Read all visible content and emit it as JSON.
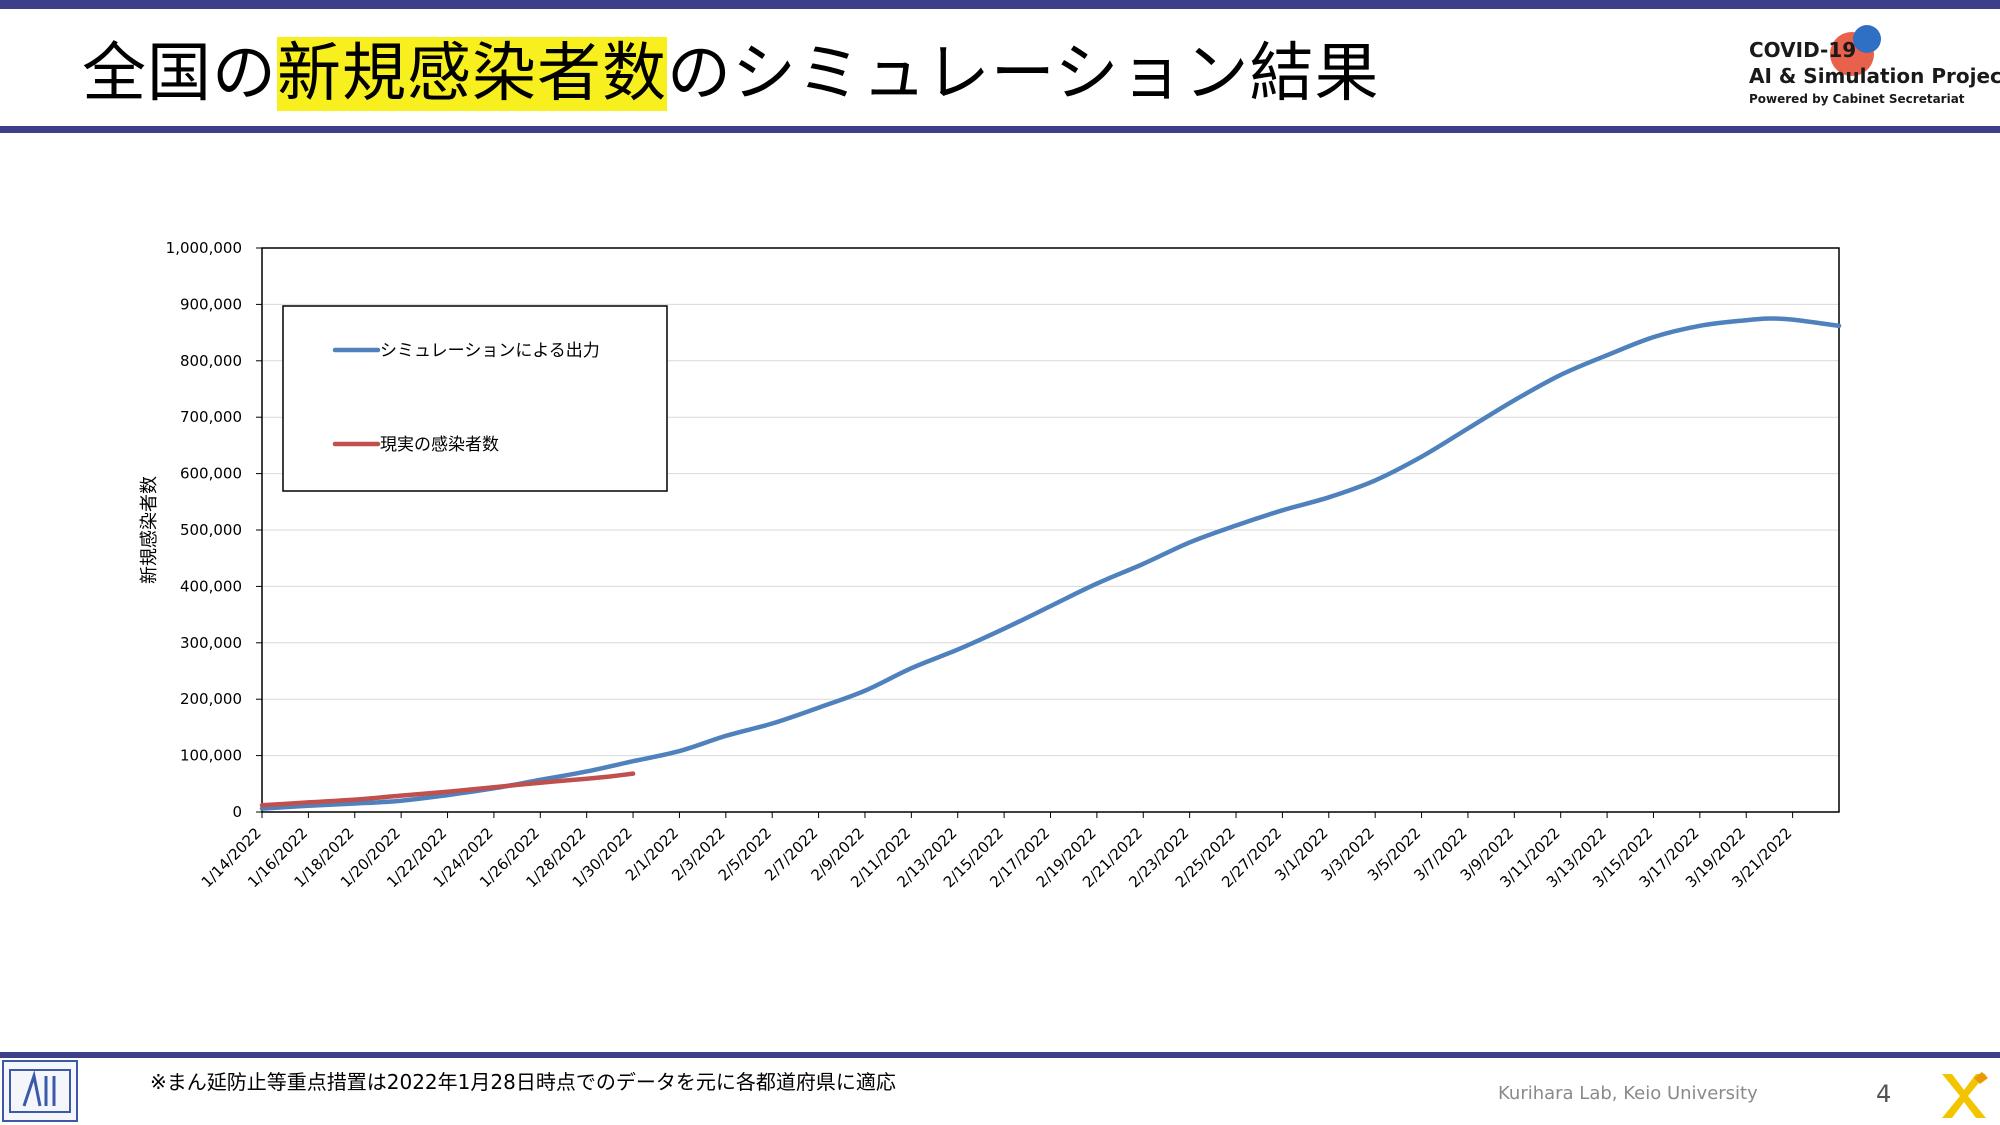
{
  "slide": {
    "title_pre": "全国の",
    "title_highlight": "新規感染者数",
    "title_post": "のシミュレーション結果",
    "logo": {
      "line1": "COVID-19",
      "line2": "AI & Simulation Project",
      "line3": "Powered by Cabinet Secretariat"
    },
    "footnote": "※まん延防止等重点措置は2022年1月28日時点でのデータを元に各都道府県に適応",
    "credit": "Kurihara Lab, Keio University",
    "page_number": "4",
    "colors": {
      "bar": "#3d3f8a",
      "highlight": "#f7f01e",
      "accent_x": "#f2c500"
    }
  },
  "chart_data": {
    "type": "line",
    "title": "",
    "xlabel": "",
    "ylabel": "新規感染者数",
    "x_start": "1/14/2022",
    "x_end": "3/23/2022",
    "x_tick_labels": [
      "1/14/2022",
      "1/16/2022",
      "1/18/2022",
      "1/20/2022",
      "1/22/2022",
      "1/24/2022",
      "1/26/2022",
      "1/28/2022",
      "1/30/2022",
      "2/1/2022",
      "2/3/2022",
      "2/5/2022",
      "2/7/2022",
      "2/9/2022",
      "2/11/2022",
      "2/13/2022",
      "2/15/2022",
      "2/17/2022",
      "2/19/2022",
      "2/21/2022",
      "2/23/2022",
      "2/25/2022",
      "2/27/2022",
      "3/1/2022",
      "3/3/2022",
      "3/5/2022",
      "3/7/2022",
      "3/9/2022",
      "3/11/2022",
      "3/13/2022",
      "3/15/2022",
      "3/17/2022",
      "3/19/2022",
      "3/21/2022"
    ],
    "ylim": [
      0,
      1000000
    ],
    "y_ticks": [
      0,
      100000,
      200000,
      300000,
      400000,
      500000,
      600000,
      700000,
      800000,
      900000,
      1000000
    ],
    "y_tick_labels": [
      "0",
      "100,000",
      "200,000",
      "300,000",
      "400,000",
      "500,000",
      "600,000",
      "700,000",
      "800,000",
      "900,000",
      "1,000,000"
    ],
    "grid": true,
    "legend_position": "top-left",
    "series": [
      {
        "name": "シミュレーションによる出力",
        "color": "#4f81bd",
        "points": [
          [
            "1/14/2022",
            6000
          ],
          [
            "1/16/2022",
            11000
          ],
          [
            "1/18/2022",
            15000
          ],
          [
            "1/20/2022",
            20000
          ],
          [
            "1/22/2022",
            30000
          ],
          [
            "1/24/2022",
            42000
          ],
          [
            "1/26/2022",
            57000
          ],
          [
            "1/28/2022",
            72000
          ],
          [
            "1/30/2022",
            90000
          ],
          [
            "2/1/2022",
            108000
          ],
          [
            "2/3/2022",
            135000
          ],
          [
            "2/5/2022",
            157000
          ],
          [
            "2/7/2022",
            185000
          ],
          [
            "2/9/2022",
            215000
          ],
          [
            "2/11/2022",
            255000
          ],
          [
            "2/13/2022",
            288000
          ],
          [
            "2/15/2022",
            325000
          ],
          [
            "2/17/2022",
            365000
          ],
          [
            "2/19/2022",
            405000
          ],
          [
            "2/21/2022",
            440000
          ],
          [
            "2/23/2022",
            478000
          ],
          [
            "2/25/2022",
            508000
          ],
          [
            "2/27/2022",
            535000
          ],
          [
            "3/1/2022",
            558000
          ],
          [
            "3/3/2022",
            588000
          ],
          [
            "3/5/2022",
            630000
          ],
          [
            "3/7/2022",
            680000
          ],
          [
            "3/9/2022",
            730000
          ],
          [
            "3/11/2022",
            775000
          ],
          [
            "3/13/2022",
            810000
          ],
          [
            "3/15/2022",
            842000
          ],
          [
            "3/17/2022",
            862000
          ],
          [
            "3/19/2022",
            872000
          ],
          [
            "3/20/2022",
            875000
          ],
          [
            "3/21/2022",
            873000
          ],
          [
            "3/23/2022",
            862000
          ]
        ]
      },
      {
        "name": "現実の感染者数",
        "color": "#c0504d",
        "points": [
          [
            "1/14/2022",
            12000
          ],
          [
            "1/16/2022",
            17000
          ],
          [
            "1/18/2022",
            22000
          ],
          [
            "1/20/2022",
            29000
          ],
          [
            "1/22/2022",
            36000
          ],
          [
            "1/24/2022",
            44000
          ],
          [
            "1/26/2022",
            52000
          ],
          [
            "1/28/2022",
            59000
          ],
          [
            "1/29/2022",
            63000
          ],
          [
            "1/30/2022",
            68000
          ]
        ]
      }
    ]
  }
}
